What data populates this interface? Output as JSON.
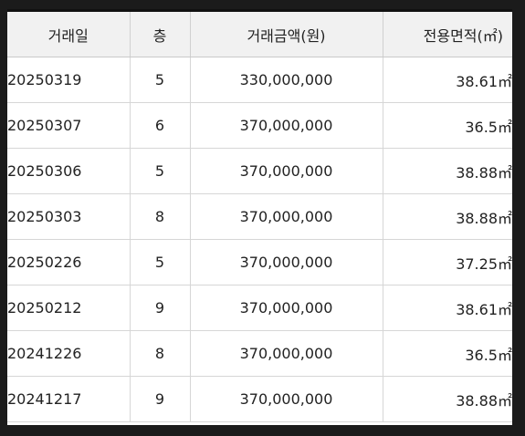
{
  "table": {
    "headers": {
      "date": "거래일",
      "floor": "층",
      "price": "거래금액(원)",
      "area": "전용면적(㎡)"
    },
    "rows": [
      {
        "date": "20250319",
        "floor": "5",
        "price": "330,000,000",
        "area": "38.61㎡"
      },
      {
        "date": "20250307",
        "floor": "6",
        "price": "370,000,000",
        "area": "36.5㎡"
      },
      {
        "date": "20250306",
        "floor": "5",
        "price": "370,000,000",
        "area": "38.88㎡"
      },
      {
        "date": "20250303",
        "floor": "8",
        "price": "370,000,000",
        "area": "38.88㎡"
      },
      {
        "date": "20250226",
        "floor": "5",
        "price": "370,000,000",
        "area": "37.25㎡"
      },
      {
        "date": "20250212",
        "floor": "9",
        "price": "370,000,000",
        "area": "38.61㎡"
      },
      {
        "date": "20241226",
        "floor": "8",
        "price": "370,000,000",
        "area": "36.5㎡"
      },
      {
        "date": "20241217",
        "floor": "9",
        "price": "370,000,000",
        "area": "38.88㎡"
      }
    ]
  }
}
